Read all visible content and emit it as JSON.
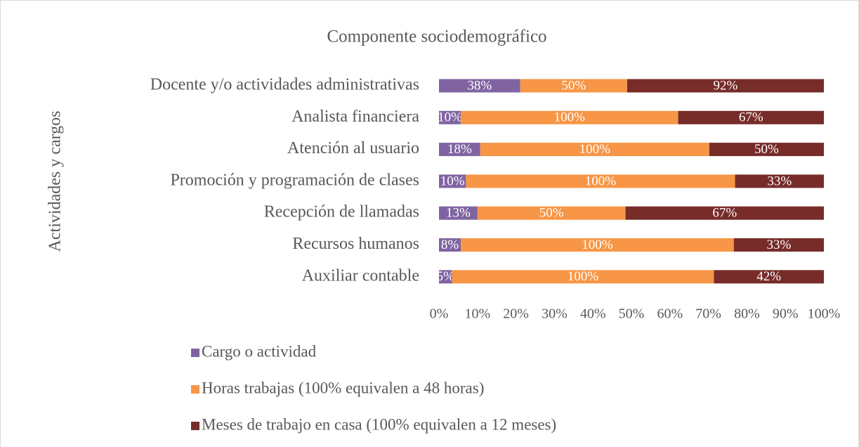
{
  "chart_data": {
    "type": "bar",
    "orientation": "horizontal",
    "stacked": "percent",
    "title": "Componente sociodemográfico",
    "y_label": "Actividades y cargos",
    "categories": [
      "Docente y/o actividades administrativas",
      "Analista financiera",
      "Atención al usuario",
      "Promoción y programación de clases",
      "Recepción de llamadas",
      "Recursos humanos",
      "Auxiliar contable"
    ],
    "series": [
      {
        "name": "Cargo o actividad",
        "color": "#8064a2",
        "values": [
          38,
          10,
          18,
          10,
          13,
          8,
          5
        ],
        "value_labels": [
          "38%",
          "10%",
          "18%",
          "10%",
          "13%",
          "8%",
          "5%"
        ]
      },
      {
        "name": "Horas trabajas (100% equivalen a 48 horas)",
        "color": "#f79646",
        "values": [
          50,
          100,
          100,
          100,
          50,
          100,
          100
        ],
        "value_labels": [
          "50%",
          "100%",
          "100%",
          "100%",
          "50%",
          "100%",
          "100%"
        ]
      },
      {
        "name": "Meses de trabajo en casa (100% equivalen a 12 meses)",
        "color": "#772c2a",
        "values": [
          92,
          67,
          50,
          33,
          67,
          33,
          42
        ],
        "value_labels": [
          "92%",
          "67%",
          "50%",
          "33%",
          "67%",
          "33%",
          "42%"
        ]
      }
    ],
    "xlim": [
      0,
      100
    ],
    "xticks": [
      {
        "value": 0,
        "label": "0%"
      },
      {
        "value": 10,
        "label": "10%"
      },
      {
        "value": 20,
        "label": "20%"
      },
      {
        "value": 30,
        "label": "30%"
      },
      {
        "value": 40,
        "label": "40%"
      },
      {
        "value": 50,
        "label": "50%"
      },
      {
        "value": 60,
        "label": "60%"
      },
      {
        "value": 70,
        "label": "70%"
      },
      {
        "value": 80,
        "label": "80%"
      },
      {
        "value": 90,
        "label": "90%"
      },
      {
        "value": 100,
        "label": "100%"
      }
    ],
    "legend": "bottom"
  }
}
